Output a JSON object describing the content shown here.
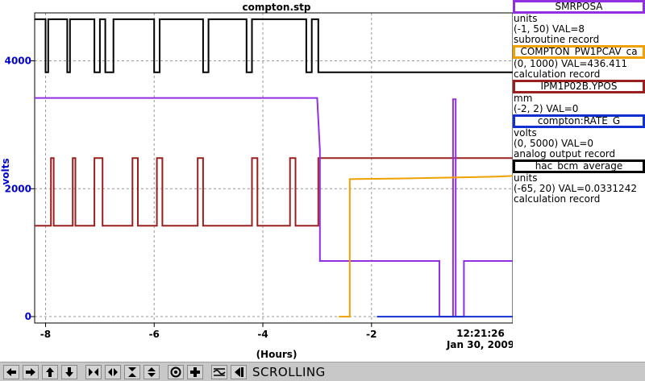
{
  "chart_data": {
    "type": "line",
    "title": "compton.stp",
    "xlabel": "(Hours)",
    "ylabel": "volts",
    "xlim": [
      -8.2,
      0.6
    ],
    "ylim": [
      -100,
      4750
    ],
    "x_ticks": [
      -8,
      -6,
      -4,
      -2
    ],
    "x_tick_labels": [
      "-8",
      "-6",
      "-4",
      "-2"
    ],
    "y_ticks": [
      0,
      2000,
      4000
    ],
    "y_tick_labels": [
      "0",
      "2000",
      "4000"
    ],
    "grid": true,
    "timestamp": [
      "12:21:26",
      "Jan 30, 2009"
    ],
    "series": [
      {
        "color": "#000000",
        "points": [
          [
            -8.2,
            4650
          ],
          [
            -8.0,
            4650
          ],
          [
            -8.0,
            3820
          ],
          [
            -7.95,
            3820
          ],
          [
            -7.95,
            4650
          ],
          [
            -7.6,
            4650
          ],
          [
            -7.6,
            3820
          ],
          [
            -7.55,
            3820
          ],
          [
            -7.55,
            4650
          ],
          [
            -7.1,
            4650
          ],
          [
            -7.1,
            3820
          ],
          [
            -7.0,
            3820
          ],
          [
            -7.0,
            4650
          ],
          [
            -6.9,
            4650
          ],
          [
            -6.9,
            3820
          ],
          [
            -6.75,
            3820
          ],
          [
            -6.75,
            4650
          ],
          [
            -6.0,
            4650
          ],
          [
            -6.0,
            3820
          ],
          [
            -5.9,
            3820
          ],
          [
            -5.9,
            4650
          ],
          [
            -5.1,
            4650
          ],
          [
            -5.1,
            3820
          ],
          [
            -5.0,
            3820
          ],
          [
            -5.0,
            4650
          ],
          [
            -4.3,
            4650
          ],
          [
            -4.3,
            3820
          ],
          [
            -4.2,
            3820
          ],
          [
            -4.2,
            4650
          ],
          [
            -3.2,
            4650
          ],
          [
            -3.2,
            3820
          ],
          [
            -3.1,
            3820
          ],
          [
            -3.1,
            4650
          ],
          [
            -2.98,
            4650
          ],
          [
            -2.98,
            3820
          ],
          [
            0.6,
            3820
          ]
        ]
      },
      {
        "color": "#9a2020",
        "points": [
          [
            -8.2,
            1420
          ],
          [
            -7.9,
            1420
          ],
          [
            -7.9,
            2480
          ],
          [
            -7.85,
            2480
          ],
          [
            -7.85,
            1420
          ],
          [
            -7.5,
            1420
          ],
          [
            -7.5,
            2480
          ],
          [
            -7.45,
            2480
          ],
          [
            -7.45,
            1420
          ],
          [
            -7.1,
            1420
          ],
          [
            -7.1,
            2480
          ],
          [
            -6.95,
            2480
          ],
          [
            -6.95,
            1420
          ],
          [
            -6.4,
            1420
          ],
          [
            -6.4,
            2480
          ],
          [
            -6.3,
            2480
          ],
          [
            -6.3,
            1420
          ],
          [
            -5.95,
            1420
          ],
          [
            -5.95,
            2480
          ],
          [
            -5.85,
            2480
          ],
          [
            -5.85,
            1420
          ],
          [
            -5.2,
            1420
          ],
          [
            -5.2,
            2480
          ],
          [
            -5.1,
            2480
          ],
          [
            -5.1,
            1420
          ],
          [
            -4.2,
            1420
          ],
          [
            -4.2,
            2480
          ],
          [
            -4.1,
            2480
          ],
          [
            -4.1,
            1420
          ],
          [
            -3.5,
            1420
          ],
          [
            -3.5,
            2480
          ],
          [
            -3.4,
            2480
          ],
          [
            -3.4,
            1420
          ],
          [
            -2.98,
            1420
          ],
          [
            -2.98,
            2480
          ],
          [
            0.6,
            2480
          ]
        ]
      },
      {
        "color": "#9030e0",
        "points": [
          [
            -8.2,
            3420
          ],
          [
            -3.0,
            3420
          ],
          [
            -2.95,
            2600
          ],
          [
            -2.95,
            870
          ],
          [
            -0.75,
            870
          ],
          [
            -0.75,
            0
          ],
          [
            -0.5,
            0
          ],
          [
            -0.5,
            3400
          ],
          [
            -0.45,
            3400
          ],
          [
            -0.45,
            0
          ],
          [
            -0.3,
            0
          ],
          [
            -0.3,
            870
          ],
          [
            0.6,
            870
          ]
        ]
      },
      {
        "color": "#f0a000",
        "points": [
          [
            -2.6,
            0
          ],
          [
            -2.4,
            0
          ],
          [
            -2.4,
            2150
          ],
          [
            -1.5,
            2160
          ],
          [
            -0.8,
            2170
          ],
          [
            -0.2,
            2180
          ],
          [
            0.3,
            2190
          ],
          [
            0.6,
            2200
          ]
        ]
      },
      {
        "color": "#1030d0",
        "points": [
          [
            -1.9,
            0
          ],
          [
            0.6,
            0
          ]
        ]
      }
    ]
  },
  "legend": [
    {
      "name": "SMRPOSA",
      "color": "#9030e0",
      "units": "units",
      "range_val": "(-1, 50) VAL=8",
      "record": "subroutine record"
    },
    {
      "name": "COMPTON_PW1PCAV_ca",
      "color": "#f0a000",
      "units": "",
      "range_val": "(0, 1000) VAL=436.411",
      "record": "calculation record"
    },
    {
      "name": "IPM1P02B.YPOS",
      "color": "#9a2020",
      "units": "mm",
      "range_val": "(-2, 2) VAL=0",
      "record": ""
    },
    {
      "name": "compton:RATE_G",
      "color": "#1030d0",
      "units": "volts",
      "range_val": "(0, 5000) VAL=0",
      "record": "analog output record"
    },
    {
      "name": "hac_bcm_average",
      "color": "#000000",
      "units": "units",
      "range_val": "(-65, 20) VAL=0.0331242",
      "record": "calculation record"
    }
  ],
  "toolbar": {
    "buttons": [
      "arrow-left-icon",
      "arrow-right-icon",
      "arrow-up-icon",
      "arrow-down-icon",
      "expand-horizontal-icon",
      "compress-horizontal-icon",
      "expand-vertical-icon",
      "compress-vertical-icon",
      "record-icon",
      "add-icon",
      "waveform-icon",
      "play-back-icon"
    ],
    "status": "SCROLLING"
  }
}
